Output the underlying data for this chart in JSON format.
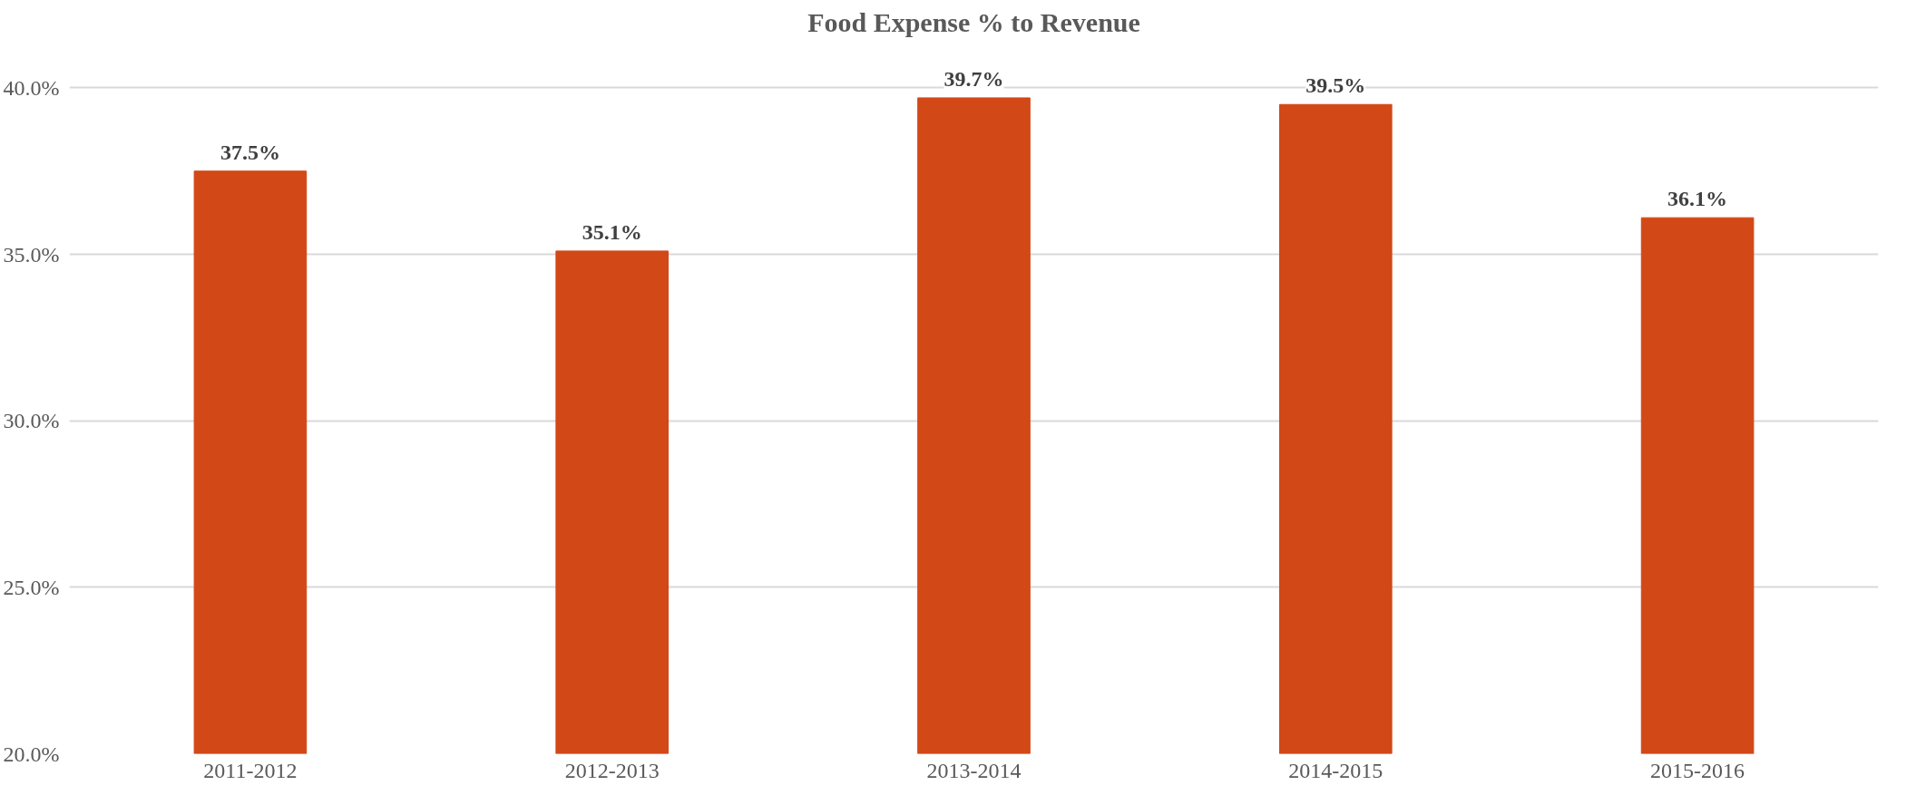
{
  "chart_data": {
    "type": "bar",
    "title": "Food Expense % to Revenue",
    "categories": [
      "2011-2012",
      "2012-2013",
      "2013-2014",
      "2014-2015",
      "2015-2016"
    ],
    "values": [
      37.5,
      35.1,
      39.7,
      39.5,
      36.1
    ],
    "value_labels": [
      "37.5%",
      "35.1%",
      "39.7%",
      "39.5%",
      "36.1%"
    ],
    "color": "#d24817",
    "ylim": [
      20,
      40
    ],
    "yticks": [
      {
        "value": 20,
        "label": "20.0%"
      },
      {
        "value": 25,
        "label": "25.0%"
      },
      {
        "value": 30,
        "label": "30.0%"
      },
      {
        "value": 35,
        "label": "35.0%"
      },
      {
        "value": 40,
        "label": "40.0%"
      }
    ],
    "grid": "y"
  }
}
